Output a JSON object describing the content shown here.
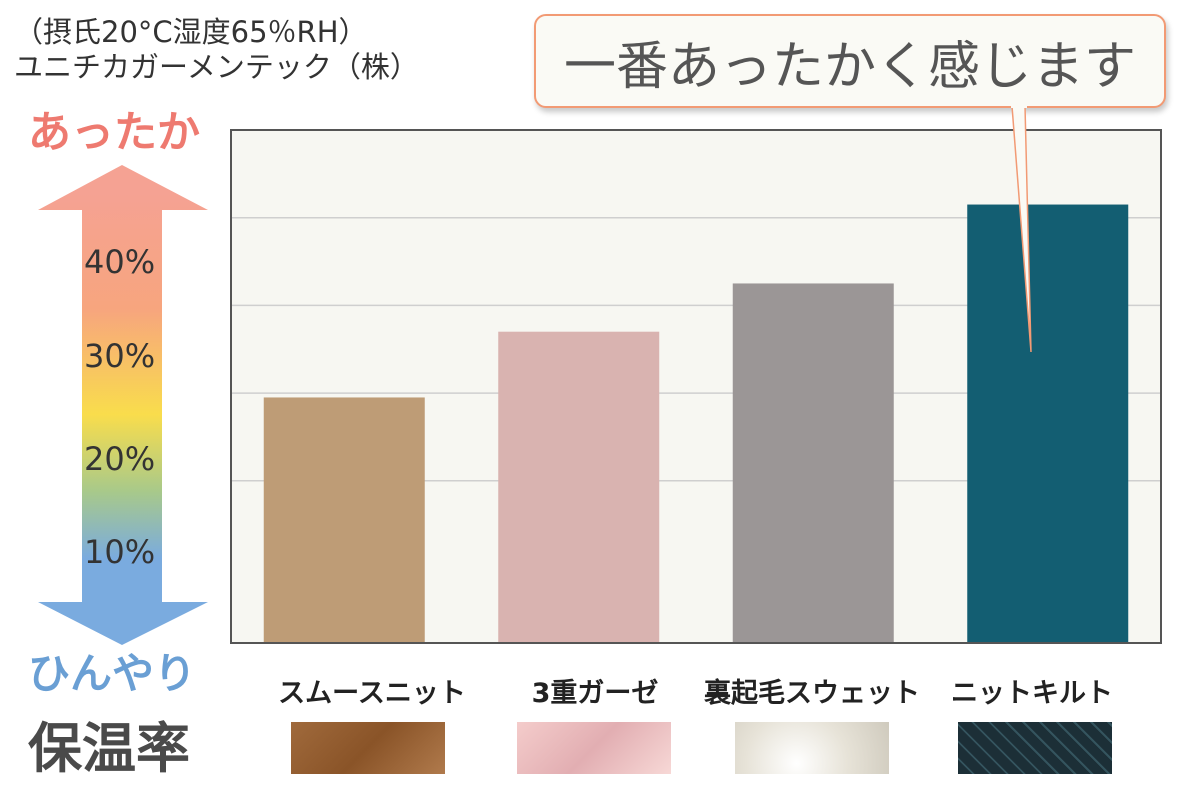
{
  "notes": {
    "line1": "（摂氏20°C湿度65％RH）",
    "line2": "ユニチカガーメンテック（株）"
  },
  "side": {
    "warm_label": "あったか",
    "cool_label": "ひんやり",
    "caption": "保温率"
  },
  "callout": {
    "text": "一番あったかく感じます"
  },
  "colors": {
    "panel_bg": "#f7f7f2",
    "panel_border": "#555555",
    "grid": "#cfcfcf",
    "arrow_top": "#f5a293",
    "arrow_mid": "#f9dd4c",
    "arrow_bottom": "#7aabdf"
  },
  "chart_data": {
    "type": "bar",
    "categories": [
      "スムースニット",
      "3重ガーゼ",
      "裏起毛スウェット",
      "ニットキルト"
    ],
    "values": [
      19.5,
      27,
      32.5,
      41.5
    ],
    "bar_colors": [
      "#be9c76",
      "#d9b3b0",
      "#9b9696",
      "#135e72"
    ],
    "ylabel": "保温率",
    "y_tick_labels": [
      "10%",
      "20%",
      "30%",
      "40%"
    ],
    "y_ticks": [
      10,
      20,
      30,
      40
    ],
    "ylim": [
      -8.5,
      50
    ],
    "grid": true,
    "legend": "none",
    "annotation": "一番あったかく感じます"
  }
}
